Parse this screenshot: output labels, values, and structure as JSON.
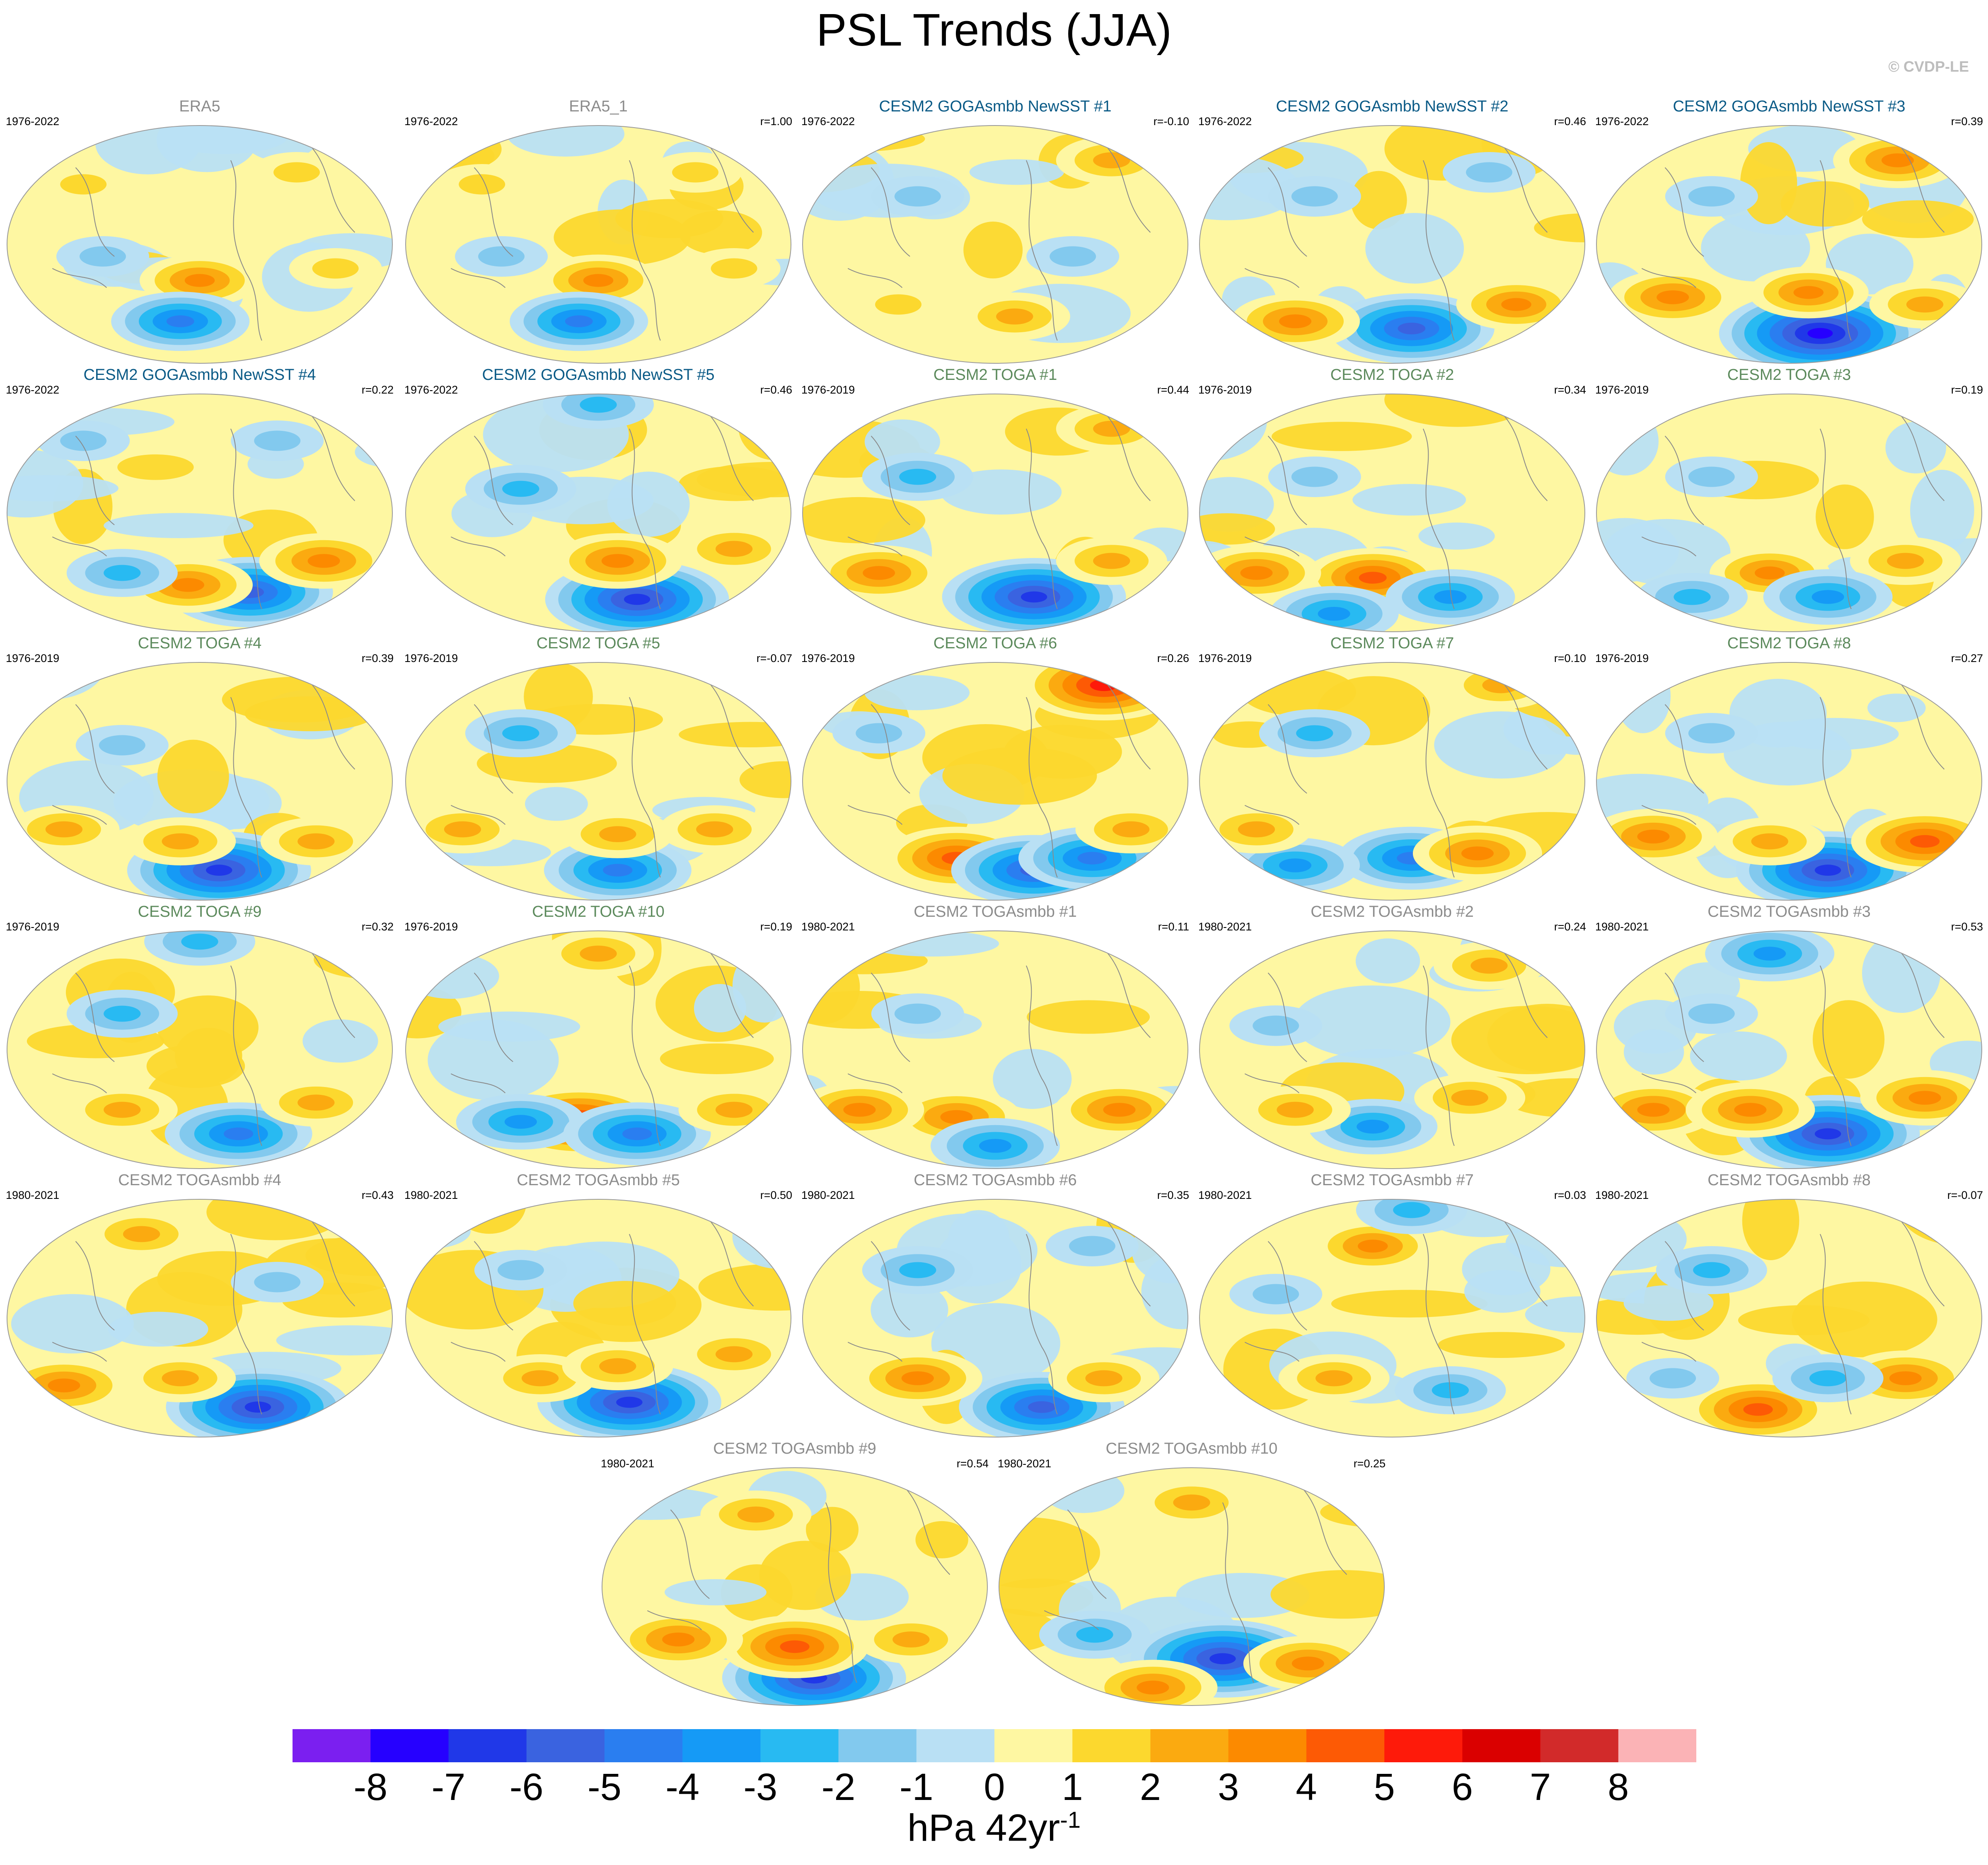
{
  "title": "PSL Trends (JJA)",
  "watermark": "© CVDP-LE",
  "colors": {
    "title_obs": "#8c8c8c",
    "title_goga": "#0a5a86",
    "title_toga": "#5c8a5c",
    "title_togasmbb": "#8c8c8c",
    "coast": "#8a8a8a"
  },
  "panels": [
    {
      "title": "ERA5",
      "period": "1976-2022",
      "r": "",
      "group": "obs",
      "pattern": [
        [
          0.2,
          0.25,
          1
        ],
        [
          0.75,
          0.2,
          1
        ],
        [
          0.5,
          0.65,
          2.5
        ],
        [
          0.45,
          0.82,
          -3.5
        ],
        [
          0.25,
          0.55,
          -1
        ],
        [
          0.85,
          0.6,
          1
        ]
      ]
    },
    {
      "title": "ERA5_1",
      "period": "1976-2022",
      "r": "r=1.00",
      "group": "obs",
      "pattern": [
        [
          0.2,
          0.25,
          1
        ],
        [
          0.75,
          0.2,
          1
        ],
        [
          0.5,
          0.65,
          2.5
        ],
        [
          0.45,
          0.82,
          -3.5
        ],
        [
          0.25,
          0.55,
          -1
        ],
        [
          0.85,
          0.6,
          1
        ]
      ]
    },
    {
      "title": "CESM2 GOGAsmbb NewSST #1",
      "period": "1976-2022",
      "r": "r=-0.10",
      "group": "goga",
      "pattern": [
        [
          0.8,
          0.15,
          2
        ],
        [
          0.55,
          0.8,
          2
        ],
        [
          0.3,
          0.3,
          -1
        ],
        [
          0.7,
          0.55,
          -1
        ],
        [
          0.25,
          0.75,
          1
        ]
      ]
    },
    {
      "title": "CESM2 GOGAsmbb NewSST #2",
      "period": "1976-2022",
      "r": "r=0.46",
      "group": "goga",
      "pattern": [
        [
          0.55,
          0.85,
          -5
        ],
        [
          0.25,
          0.82,
          3
        ],
        [
          0.82,
          0.75,
          2.5
        ],
        [
          0.3,
          0.3,
          -1
        ],
        [
          0.75,
          0.2,
          -1
        ]
      ]
    },
    {
      "title": "CESM2 GOGAsmbb NewSST #3",
      "period": "1976-2022",
      "r": "r=0.39",
      "group": "goga",
      "pattern": [
        [
          0.58,
          0.87,
          -7
        ],
        [
          0.2,
          0.72,
          3
        ],
        [
          0.55,
          0.7,
          2.5
        ],
        [
          0.85,
          0.75,
          2
        ],
        [
          0.78,
          0.15,
          3
        ],
        [
          0.3,
          0.3,
          -1
        ]
      ]
    },
    {
      "title": "CESM2 GOGAsmbb NewSST #4",
      "period": "1976-2022",
      "r": "r=0.22",
      "group": "goga",
      "pattern": [
        [
          0.63,
          0.83,
          -5
        ],
        [
          0.47,
          0.8,
          3
        ],
        [
          0.82,
          0.7,
          3
        ],
        [
          0.3,
          0.75,
          -2
        ],
        [
          0.2,
          0.2,
          -1
        ],
        [
          0.7,
          0.2,
          -1
        ]
      ]
    },
    {
      "title": "CESM2 GOGAsmbb NewSST #5",
      "period": "1976-2022",
      "r": "r=0.46",
      "group": "goga",
      "pattern": [
        [
          0.6,
          0.86,
          -6
        ],
        [
          0.55,
          0.7,
          3
        ],
        [
          0.85,
          0.65,
          2
        ],
        [
          0.3,
          0.4,
          -2
        ],
        [
          0.5,
          0.05,
          -2
        ]
      ]
    },
    {
      "title": "CESM2 TOGA #1",
      "period": "1976-2019",
      "r": "r=0.44",
      "group": "toga",
      "pattern": [
        [
          0.6,
          0.85,
          -6
        ],
        [
          0.2,
          0.75,
          3
        ],
        [
          0.8,
          0.7,
          2
        ],
        [
          0.3,
          0.35,
          -2
        ],
        [
          0.8,
          0.15,
          2
        ]
      ]
    },
    {
      "title": "CESM2 TOGA #2",
      "period": "1976-2019",
      "r": "r=0.34",
      "group": "toga",
      "pattern": [
        [
          0.45,
          0.77,
          3.5
        ],
        [
          0.15,
          0.75,
          3
        ],
        [
          0.65,
          0.85,
          -3
        ],
        [
          0.35,
          0.92,
          -3
        ],
        [
          0.3,
          0.35,
          -1
        ]
      ]
    },
    {
      "title": "CESM2 TOGA #3",
      "period": "1976-2019",
      "r": "r=0.19",
      "group": "toga",
      "pattern": [
        [
          0.45,
          0.75,
          2.5
        ],
        [
          0.8,
          0.7,
          2
        ],
        [
          0.6,
          0.85,
          -3
        ],
        [
          0.25,
          0.85,
          -2
        ],
        [
          0.3,
          0.35,
          -1
        ]
      ]
    },
    {
      "title": "CESM2 TOGA #4",
      "period": "1976-2019",
      "r": "r=0.39",
      "group": "toga",
      "pattern": [
        [
          0.55,
          0.87,
          -6
        ],
        [
          0.45,
          0.75,
          2
        ],
        [
          0.15,
          0.7,
          2
        ],
        [
          0.8,
          0.75,
          2
        ],
        [
          0.3,
          0.35,
          -1
        ]
      ]
    },
    {
      "title": "CESM2 TOGA #5",
      "period": "1976-2019",
      "r": "r=-0.07",
      "group": "toga",
      "pattern": [
        [
          0.55,
          0.87,
          -4
        ],
        [
          0.15,
          0.7,
          2
        ],
        [
          0.55,
          0.72,
          2
        ],
        [
          0.8,
          0.7,
          2
        ],
        [
          0.3,
          0.3,
          -2
        ]
      ]
    },
    {
      "title": "CESM2 TOGA #6",
      "period": "1976-2019",
      "r": "r=0.26",
      "group": "toga",
      "pattern": [
        [
          0.4,
          0.82,
          4
        ],
        [
          0.6,
          0.87,
          -5
        ],
        [
          0.75,
          0.82,
          -4
        ],
        [
          0.78,
          0.1,
          5
        ],
        [
          0.85,
          0.7,
          2
        ],
        [
          0.2,
          0.3,
          -1
        ]
      ]
    },
    {
      "title": "CESM2 TOGA #7",
      "period": "1976-2019",
      "r": "r=0.10",
      "group": "toga",
      "pattern": [
        [
          0.55,
          0.82,
          -4
        ],
        [
          0.25,
          0.85,
          -3
        ],
        [
          0.72,
          0.8,
          3
        ],
        [
          0.15,
          0.7,
          2
        ],
        [
          0.3,
          0.3,
          -2
        ],
        [
          0.78,
          0.1,
          2
        ]
      ]
    },
    {
      "title": "CESM2 TOGA #8",
      "period": "1976-2019",
      "r": "r=0.27",
      "group": "toga",
      "pattern": [
        [
          0.6,
          0.87,
          -6
        ],
        [
          0.85,
          0.75,
          4
        ],
        [
          0.15,
          0.73,
          3
        ],
        [
          0.45,
          0.75,
          2
        ],
        [
          0.3,
          0.3,
          -1
        ]
      ]
    },
    {
      "title": "CESM2 TOGA #9",
      "period": "1976-2019",
      "r": "r=0.32",
      "group": "toga",
      "pattern": [
        [
          0.6,
          0.85,
          -4
        ],
        [
          0.3,
          0.75,
          2
        ],
        [
          0.8,
          0.72,
          2
        ],
        [
          0.3,
          0.35,
          -2
        ],
        [
          0.5,
          0.05,
          -2
        ]
      ]
    },
    {
      "title": "CESM2 TOGA #10",
      "period": "1976-2019",
      "r": "r=0.19",
      "group": "toga",
      "pattern": [
        [
          0.45,
          0.8,
          5
        ],
        [
          0.3,
          0.8,
          -3
        ],
        [
          0.6,
          0.85,
          -4
        ],
        [
          0.5,
          0.1,
          2
        ],
        [
          0.85,
          0.75,
          2
        ]
      ]
    },
    {
      "title": "CESM2 TOGAsmbb #1",
      "period": "1980-2021",
      "r": "r=0.11",
      "group": "togasmbb",
      "pattern": [
        [
          0.4,
          0.78,
          3
        ],
        [
          0.15,
          0.75,
          3
        ],
        [
          0.82,
          0.75,
          3
        ],
        [
          0.5,
          0.9,
          -3
        ],
        [
          0.3,
          0.35,
          -1
        ]
      ]
    },
    {
      "title": "CESM2 TOGAsmbb #2",
      "period": "1980-2021",
      "r": "r=0.24",
      "group": "togasmbb",
      "pattern": [
        [
          0.45,
          0.82,
          -3
        ],
        [
          0.7,
          0.7,
          2
        ],
        [
          0.25,
          0.75,
          2
        ],
        [
          0.75,
          0.15,
          2
        ],
        [
          0.2,
          0.4,
          -1
        ]
      ]
    },
    {
      "title": "CESM2 TOGAsmbb #3",
      "period": "1980-2021",
      "r": "r=0.53",
      "group": "togasmbb",
      "pattern": [
        [
          0.6,
          0.85,
          -6
        ],
        [
          0.15,
          0.75,
          3
        ],
        [
          0.4,
          0.75,
          3
        ],
        [
          0.85,
          0.7,
          3
        ],
        [
          0.45,
          0.1,
          -3
        ],
        [
          0.3,
          0.35,
          -1
        ]
      ]
    },
    {
      "title": "CESM2 TOGAsmbb #4",
      "period": "1980-2021",
      "r": "r=0.43",
      "group": "togasmbb",
      "pattern": [
        [
          0.65,
          0.87,
          -6
        ],
        [
          0.15,
          0.78,
          3
        ],
        [
          0.45,
          0.75,
          2
        ],
        [
          0.35,
          0.15,
          2
        ],
        [
          0.7,
          0.35,
          -1
        ]
      ]
    },
    {
      "title": "CESM2 TOGAsmbb #5",
      "period": "1980-2021",
      "r": "r=0.50",
      "group": "togasmbb",
      "pattern": [
        [
          0.58,
          0.85,
          -6
        ],
        [
          0.35,
          0.75,
          2
        ],
        [
          0.55,
          0.7,
          2
        ],
        [
          0.85,
          0.65,
          2
        ],
        [
          0.3,
          0.3,
          -1
        ]
      ]
    },
    {
      "title": "CESM2 TOGAsmbb #6",
      "period": "1980-2021",
      "r": "r=0.35",
      "group": "togasmbb",
      "pattern": [
        [
          0.62,
          0.87,
          -5
        ],
        [
          0.3,
          0.75,
          3
        ],
        [
          0.78,
          0.75,
          2
        ],
        [
          0.3,
          0.3,
          -2
        ],
        [
          0.75,
          0.2,
          -1
        ]
      ]
    },
    {
      "title": "CESM2 TOGAsmbb #7",
      "period": "1980-2021",
      "r": "r=0.03",
      "group": "togasmbb",
      "pattern": [
        [
          0.45,
          0.2,
          2.5
        ],
        [
          0.55,
          0.05,
          -2
        ],
        [
          0.35,
          0.75,
          2
        ],
        [
          0.65,
          0.8,
          -2
        ],
        [
          0.2,
          0.4,
          -1
        ]
      ]
    },
    {
      "title": "CESM2 TOGAsmbb #8",
      "period": "1980-2021",
      "r": "r=-0.07",
      "group": "togasmbb",
      "pattern": [
        [
          0.42,
          0.88,
          4
        ],
        [
          0.8,
          0.75,
          3
        ],
        [
          0.6,
          0.75,
          -2
        ],
        [
          0.3,
          0.3,
          -2
        ],
        [
          0.2,
          0.75,
          -1
        ]
      ]
    },
    {
      "title": "CESM2 TOGAsmbb #9",
      "period": "1980-2021",
      "r": "r=0.54",
      "group": "togasmbb",
      "pattern": [
        [
          0.55,
          0.88,
          -6
        ],
        [
          0.5,
          0.75,
          4
        ],
        [
          0.2,
          0.72,
          3
        ],
        [
          0.8,
          0.72,
          2
        ],
        [
          0.4,
          0.2,
          2
        ]
      ]
    },
    {
      "title": "CESM2 TOGAsmbb #10",
      "period": "1980-2021",
      "r": "r=0.25",
      "group": "togasmbb",
      "pattern": [
        [
          0.58,
          0.8,
          -6
        ],
        [
          0.4,
          0.92,
          3
        ],
        [
          0.8,
          0.82,
          3
        ],
        [
          0.25,
          0.7,
          -2
        ],
        [
          0.5,
          0.15,
          2
        ]
      ]
    }
  ],
  "colorbar": {
    "colors": [
      "#7b1ff0",
      "#2600ff",
      "#2038e8",
      "#3a63e0",
      "#2a7ef0",
      "#159af6",
      "#28baf2",
      "#82c9ee",
      "#b9e0f4",
      "#fef7a2",
      "#fcd82e",
      "#fbaa10",
      "#fc8a00",
      "#fd5a05",
      "#fe1a0a",
      "#da0000",
      "#d22a2a",
      "#fbb3b6"
    ],
    "ticks": [
      "-8",
      "-7",
      "-6",
      "-5",
      "-4",
      "-3",
      "-2",
      "-1",
      "0",
      "1",
      "2",
      "3",
      "4",
      "5",
      "6",
      "7",
      "8"
    ]
  },
  "units": "hPa 42yr",
  "units_exp": "-1"
}
